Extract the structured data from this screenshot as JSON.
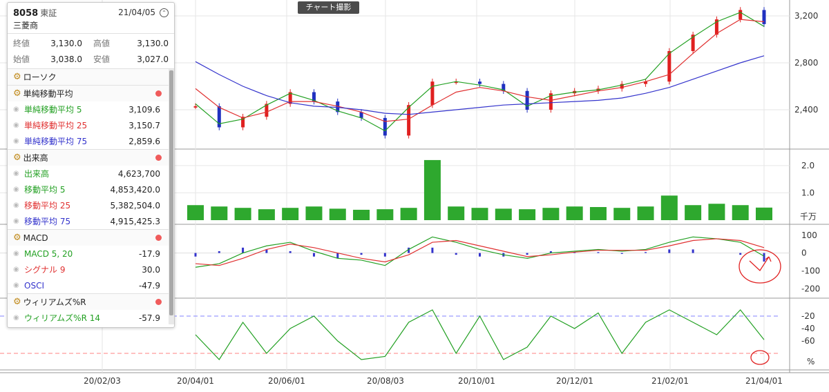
{
  "info": {
    "code": "8058",
    "exchange": "東証",
    "date": "21/04/05",
    "name": "三菱商",
    "prices": [
      {
        "l1": "終値",
        "v1": "3,130.0",
        "l2": "高値",
        "v2": "3,130.0"
      },
      {
        "l1": "始値",
        "v1": "3,038.0",
        "l2": "安値",
        "v2": "3,027.0"
      }
    ]
  },
  "capture_button": "チャート撮影",
  "sections": [
    {
      "title": "ローソク",
      "dot": false,
      "items": []
    },
    {
      "title": "単純移動平均",
      "dot": true,
      "items": [
        {
          "label": "単純移動平均 5",
          "value": "3,109.6",
          "color": "#22a022"
        },
        {
          "label": "単純移動平均 25",
          "value": "3,150.7",
          "color": "#e03030"
        },
        {
          "label": "単純移動平均 75",
          "value": "2,859.6",
          "color": "#3333cc"
        }
      ]
    },
    {
      "title": "出来高",
      "dot": true,
      "items": [
        {
          "label": "出来高",
          "value": "4,623,700",
          "color": "#22a022"
        },
        {
          "label": "移動平均 5",
          "value": "4,853,420.0",
          "color": "#22a022"
        },
        {
          "label": "移動平均 25",
          "value": "5,382,504.0",
          "color": "#e03030"
        },
        {
          "label": "移動平均 75",
          "value": "4,915,425.3",
          "color": "#3333cc"
        }
      ]
    },
    {
      "title": "MACD",
      "dot": true,
      "items": [
        {
          "label": "MACD 5, 20",
          "value": "-17.9",
          "color": "#22a022"
        },
        {
          "label": "シグナル 9",
          "value": "30.0",
          "color": "#e03030"
        },
        {
          "label": "OSCI",
          "value": "-47.9",
          "color": "#3333cc"
        }
      ]
    },
    {
      "title": "ウィリアムズ%R",
      "dot": true,
      "items": [
        {
          "label": "ウィリアムズ%R 14",
          "value": "-57.9",
          "color": "#22a022"
        }
      ]
    }
  ],
  "chart_data": {
    "type": "line",
    "x_tick_labels": [
      "20/02/03",
      "20/04/01",
      "20/06/01",
      "20/08/03",
      "20/10/01",
      "20/12/01",
      "21/02/01",
      "21/04/01"
    ],
    "price": {
      "y_ticks": [
        2400,
        2800,
        3200
      ],
      "ylim": [
        2100,
        3300
      ],
      "x": [
        "20/04/01",
        "20/04/15",
        "20/05/01",
        "20/05/15",
        "20/06/01",
        "20/06/15",
        "20/07/01",
        "20/07/15",
        "20/08/03",
        "20/08/17",
        "20/09/01",
        "20/09/15",
        "20/10/01",
        "20/10/15",
        "20/11/02",
        "20/11/16",
        "20/12/01",
        "20/12/15",
        "21/01/04",
        "21/01/18",
        "21/02/01",
        "21/02/15",
        "21/03/01",
        "21/03/15",
        "21/04/01"
      ],
      "close": [
        2430,
        2250,
        2340,
        2450,
        2550,
        2470,
        2380,
        2330,
        2180,
        2440,
        2640,
        2640,
        2620,
        2560,
        2400,
        2540,
        2560,
        2580,
        2620,
        2640,
        2900,
        3040,
        3170,
        3250,
        3130
      ],
      "series": [
        {
          "name": "単純移動平均 5",
          "color": "#22a022",
          "values": [
            2450,
            2280,
            2320,
            2440,
            2540,
            2480,
            2390,
            2330,
            2220,
            2420,
            2600,
            2640,
            2610,
            2570,
            2430,
            2520,
            2550,
            2570,
            2610,
            2660,
            2880,
            3020,
            3150,
            3230,
            3110
          ]
        },
        {
          "name": "単純移動平均 25",
          "color": "#e03030",
          "values": [
            2580,
            2420,
            2330,
            2380,
            2470,
            2470,
            2430,
            2380,
            2300,
            2320,
            2440,
            2550,
            2590,
            2560,
            2510,
            2480,
            2520,
            2560,
            2590,
            2640,
            2700,
            2880,
            3050,
            3170,
            3150
          ]
        },
        {
          "name": "単純移動平均 75",
          "color": "#3333cc",
          "values": [
            2810,
            2700,
            2600,
            2520,
            2460,
            2430,
            2420,
            2400,
            2370,
            2360,
            2380,
            2400,
            2420,
            2440,
            2450,
            2460,
            2470,
            2480,
            2500,
            2540,
            2590,
            2660,
            2730,
            2800,
            2860
          ]
        }
      ]
    },
    "volume": {
      "y_ticks": [
        1.0,
        2.0
      ],
      "unit": "千万",
      "ylim": [
        0,
        2.4
      ],
      "values": [
        0.55,
        0.5,
        0.45,
        0.4,
        0.45,
        0.5,
        0.42,
        0.38,
        0.4,
        0.45,
        2.2,
        0.5,
        0.45,
        0.42,
        0.4,
        0.45,
        0.5,
        0.48,
        0.45,
        0.5,
        0.9,
        0.55,
        0.6,
        0.55,
        0.46
      ]
    },
    "macd": {
      "y_ticks": [
        100,
        0,
        -100,
        -200
      ],
      "ylim": [
        -230,
        130
      ],
      "macd": [
        -80,
        -60,
        0,
        40,
        60,
        10,
        -30,
        -40,
        -70,
        20,
        90,
        60,
        20,
        -10,
        -30,
        0,
        10,
        20,
        10,
        20,
        60,
        90,
        80,
        60,
        -18
      ],
      "signal": [
        -60,
        -70,
        -30,
        20,
        50,
        30,
        0,
        -30,
        -50,
        -10,
        60,
        70,
        40,
        10,
        -20,
        -10,
        5,
        15,
        15,
        15,
        40,
        70,
        80,
        70,
        30
      ]
    },
    "williams_r": {
      "y_ticks": [
        -20,
        -40,
        -60
      ],
      "unit": "%",
      "ylim": [
        -100,
        0
      ],
      "values": [
        -50,
        -90,
        -30,
        -80,
        -40,
        -20,
        -60,
        -90,
        -85,
        -30,
        -10,
        -80,
        -20,
        -90,
        -70,
        -20,
        -40,
        -15,
        -80,
        -30,
        -10,
        -30,
        -50,
        -10,
        -58
      ]
    }
  }
}
